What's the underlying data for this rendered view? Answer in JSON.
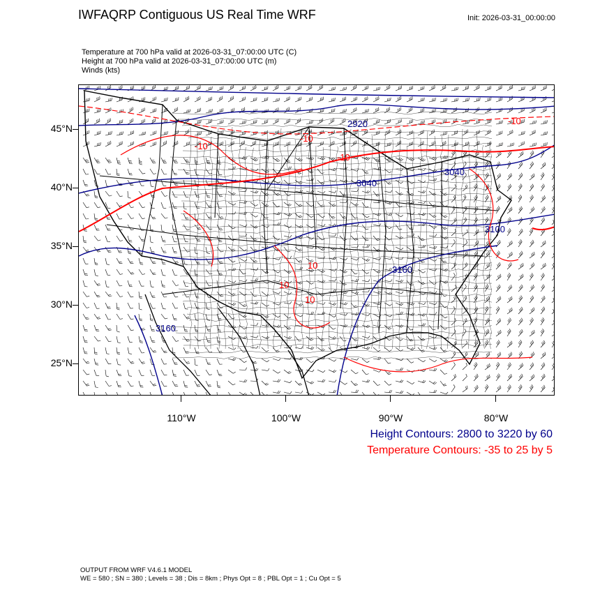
{
  "title": "IWFAQRP Contiguous US Real Time WRF",
  "init_time": "Init: 2026-03-31_00:00:00",
  "fields": [
    "Temperature at 700 hPa valid at 2026-03-31_07:00:00 UTC   (C)",
    "Height at 700 hPa valid at 2026-03-31_07:00:00 UTC   (m)",
    "Winds   (kts)"
  ],
  "latitude_labels": [
    "45°N",
    "40°N",
    "35°N",
    "30°N",
    "25°N"
  ],
  "longitude_labels": [
    "110°W",
    "100°W",
    "90°W",
    "80°W"
  ],
  "height_contour_labels": [
    "2920",
    "3040",
    "3040",
    "3100",
    "3160",
    "3160"
  ],
  "temperature_contour_labels": [
    "-10",
    "-10",
    "-10",
    "-10",
    "10",
    "10",
    "10"
  ],
  "legend": {
    "height": "Height Contours: 2800 to 3220 by 60",
    "temperature": "Temperature Contours: -35 to 25 by 5"
  },
  "footer": [
    "OUTPUT FROM WRF V4.6.1 MODEL",
    "WE = 580 ; SN = 380 ; Levels = 38 ; Dis = 8km ; Phys Opt = 8 ; PBL Opt = 1 ; Cu Opt = 5"
  ],
  "colors": {
    "height_contour": "#00008b",
    "temperature_contour": "#ff0000",
    "boundaries": "#000000",
    "wind_barbs": "#000000"
  }
}
